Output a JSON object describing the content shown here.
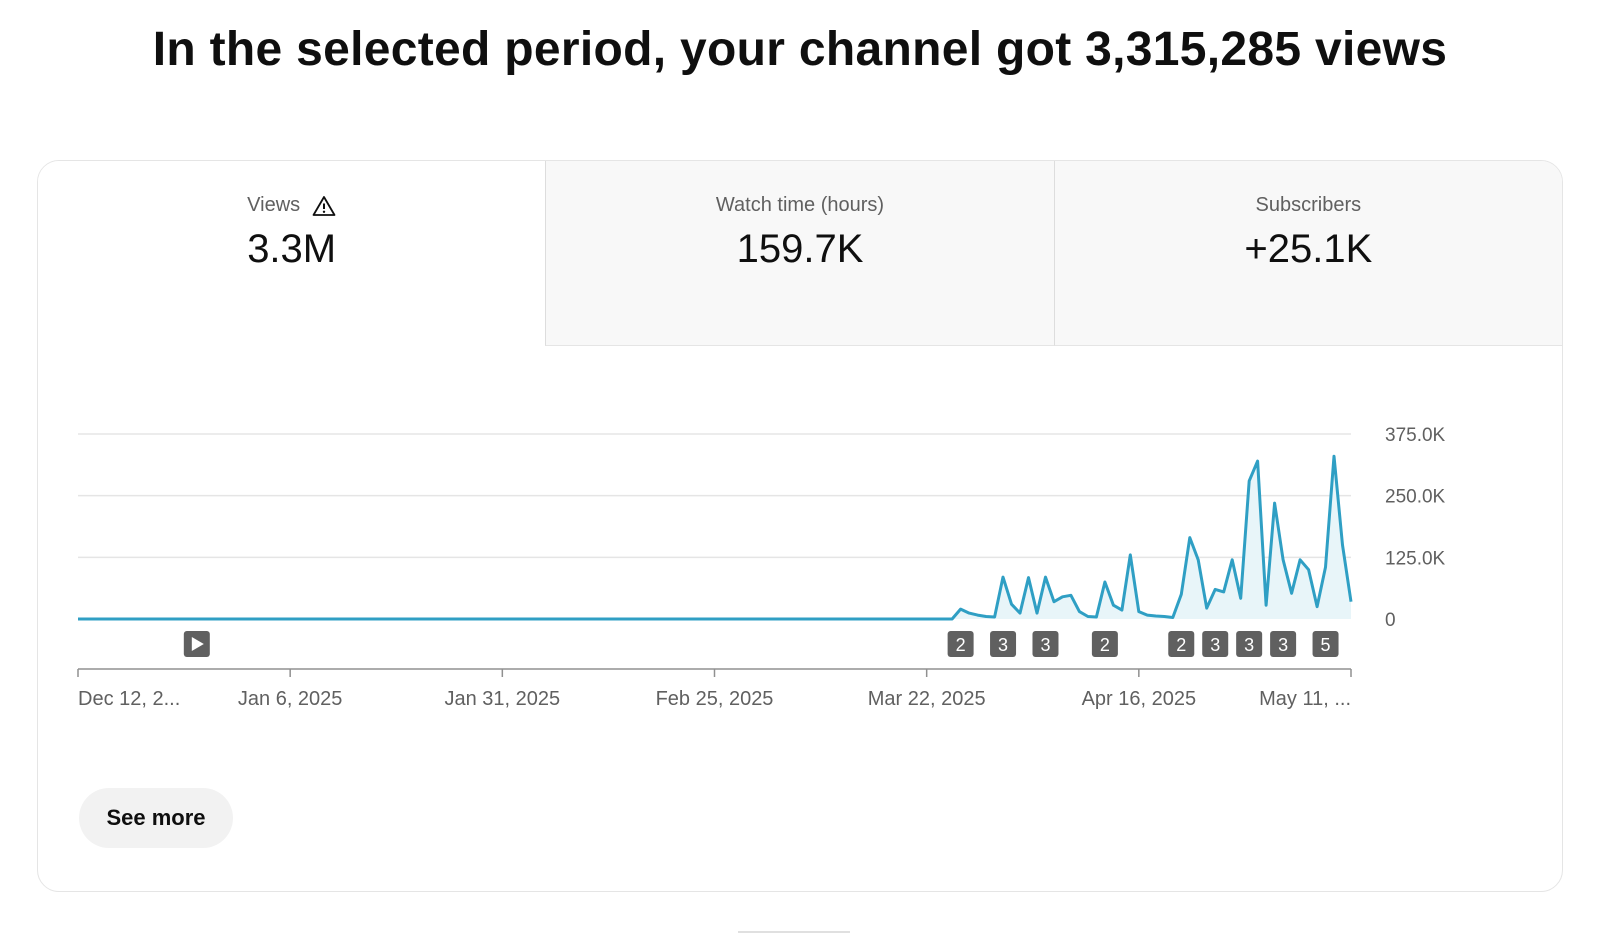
{
  "headline": "In the selected period, your channel got 3,315,285 views",
  "tabs": [
    {
      "label": "Views",
      "value": "3.3M",
      "icon": "warning-icon"
    },
    {
      "label": "Watch time (hours)",
      "value": "159.7K"
    },
    {
      "label": "Subscribers",
      "value": "+25.1K"
    }
  ],
  "see_more_label": "See more",
  "colors": {
    "line": "#2f9fc4",
    "fill": "#e8f5f9",
    "marker": "#606060"
  },
  "chart_data": {
    "type": "area",
    "ylim": [
      0,
      375000
    ],
    "ytick_values": [
      0,
      125000,
      250000,
      375000
    ],
    "ytick_labels": [
      "0",
      "125.0K",
      "250.0K",
      "375.0K"
    ],
    "xtick_labels": [
      "Dec 12, 2...",
      "Jan 6, 2025",
      "Jan 31, 2025",
      "Feb 25, 2025",
      "Mar 22, 2025",
      "Apr 16, 2025",
      "May 11, ..."
    ],
    "xtick_days": [
      0,
      25,
      50,
      75,
      100,
      125,
      150
    ],
    "series": [
      {
        "days": [
          0,
          103,
          104,
          105,
          106,
          107,
          108,
          109,
          110,
          111,
          112,
          113,
          114,
          115,
          116,
          117,
          118,
          119,
          120,
          121,
          122,
          123,
          124,
          125,
          126,
          127,
          128,
          129,
          130,
          131,
          132,
          133,
          134,
          135,
          136,
          137,
          138,
          139,
          140,
          141,
          142,
          143,
          144,
          145,
          146,
          147,
          148,
          149,
          150
        ],
        "values": [
          0,
          0,
          20000,
          12000,
          8000,
          5000,
          4000,
          85000,
          30000,
          12000,
          84000,
          12000,
          85000,
          35000,
          45000,
          48000,
          15000,
          5000,
          4000,
          75000,
          28000,
          18000,
          130000,
          15000,
          8000,
          6000,
          5000,
          3000,
          50000,
          165000,
          120000,
          22000,
          60000,
          55000,
          120000,
          42000,
          280000,
          320000,
          28000,
          235000,
          120000,
          52000,
          120000,
          100000,
          25000,
          105000,
          330000,
          150000,
          35000
        ]
      }
    ],
    "markers": [
      {
        "day": 14,
        "type": "play"
      },
      {
        "day": 104,
        "label": "2"
      },
      {
        "day": 109,
        "label": "3"
      },
      {
        "day": 114,
        "label": "3"
      },
      {
        "day": 121,
        "label": "2"
      },
      {
        "day": 130,
        "label": "2"
      },
      {
        "day": 134,
        "label": "3"
      },
      {
        "day": 138,
        "label": "3"
      },
      {
        "day": 142,
        "label": "3"
      },
      {
        "day": 147,
        "label": "5"
      }
    ]
  }
}
